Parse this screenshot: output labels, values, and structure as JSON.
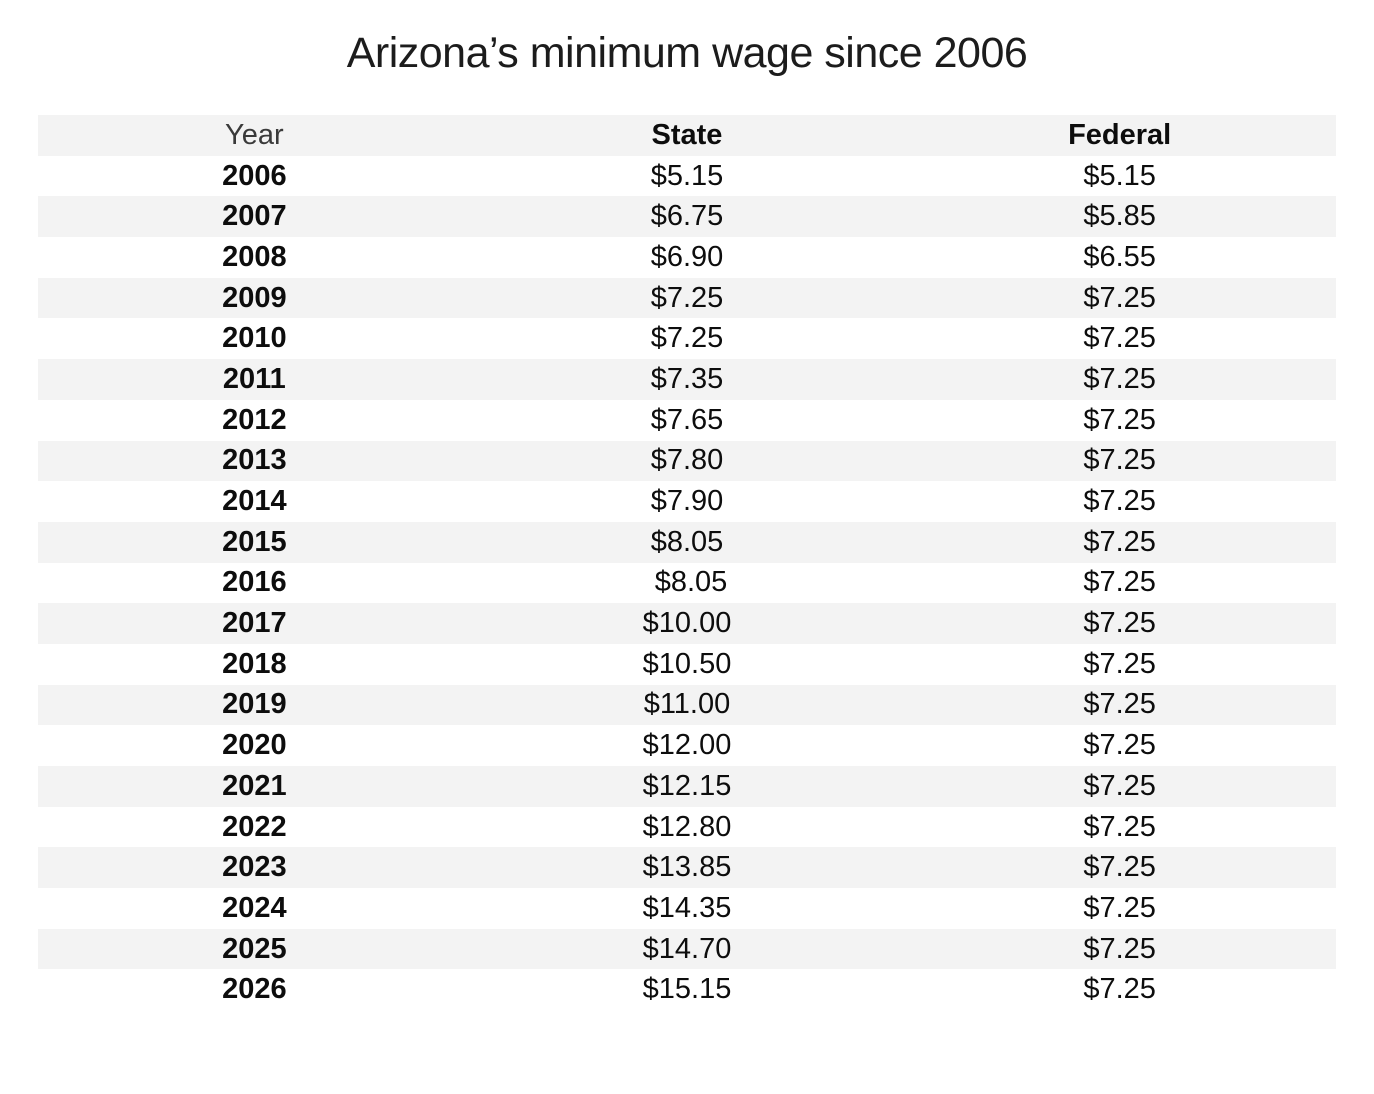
{
  "title": "Arizona’s minimum wage since 2006",
  "table": {
    "columns": [
      "Year",
      "State",
      "Federal"
    ],
    "rows": [
      [
        "2006",
        "$5.15",
        "$5.15"
      ],
      [
        "2007",
        "$6.75",
        "$5.85"
      ],
      [
        "2008",
        "$6.90",
        "$6.55"
      ],
      [
        "2009",
        "$7.25",
        "$7.25"
      ],
      [
        "2010",
        "$7.25",
        "$7.25"
      ],
      [
        "2011",
        "$7.35",
        "$7.25"
      ],
      [
        "2012",
        "$7.65",
        "$7.25"
      ],
      [
        "2013",
        "$7.80",
        "$7.25"
      ],
      [
        "2014",
        "$7.90",
        "$7.25"
      ],
      [
        "2015",
        "$8.05",
        "$7.25"
      ],
      [
        "2016",
        " $8.05",
        "$7.25"
      ],
      [
        "2017",
        "$10.00",
        "$7.25"
      ],
      [
        "2018",
        "$10.50",
        "$7.25"
      ],
      [
        "2019",
        "$11.00",
        "$7.25"
      ],
      [
        "2020",
        "$12.00",
        "$7.25"
      ],
      [
        "2021",
        "$12.15",
        "$7.25"
      ],
      [
        "2022",
        "$12.80",
        "$7.25"
      ],
      [
        "2023",
        "$13.85",
        "$7.25"
      ],
      [
        "2024",
        "$14.35",
        "$7.25"
      ],
      [
        "2025",
        "$14.70",
        "$7.25"
      ],
      [
        "2026",
        "$15.15",
        "$7.25"
      ]
    ]
  },
  "chart_data": {
    "type": "table",
    "title": "Arizona’s minimum wage since 2006",
    "columns": [
      "Year",
      "State",
      "Federal"
    ],
    "categories": [
      "2006",
      "2007",
      "2008",
      "2009",
      "2010",
      "2011",
      "2012",
      "2013",
      "2014",
      "2015",
      "2016",
      "2017",
      "2018",
      "2019",
      "2020",
      "2021",
      "2022",
      "2023",
      "2024",
      "2025",
      "2026"
    ],
    "series": [
      {
        "name": "State",
        "values": [
          5.15,
          6.75,
          6.9,
          7.25,
          7.25,
          7.35,
          7.65,
          7.8,
          7.9,
          8.05,
          8.05,
          10.0,
          10.5,
          11.0,
          12.0,
          12.15,
          12.8,
          13.85,
          14.35,
          14.7,
          15.15
        ]
      },
      {
        "name": "Federal",
        "values": [
          5.15,
          5.85,
          6.55,
          7.25,
          7.25,
          7.25,
          7.25,
          7.25,
          7.25,
          7.25,
          7.25,
          7.25,
          7.25,
          7.25,
          7.25,
          7.25,
          7.25,
          7.25,
          7.25,
          7.25,
          7.25
        ]
      }
    ],
    "layout": {
      "stripe_pattern": "header and alternating rows shaded",
      "row_shade_color": "#f3f3f3",
      "background": "#ffffff",
      "text_color": "#0d0d0d"
    }
  },
  "colors": {
    "stripe": "#f3f3f3",
    "background": "#ffffff",
    "text": "#0d0d0d"
  }
}
